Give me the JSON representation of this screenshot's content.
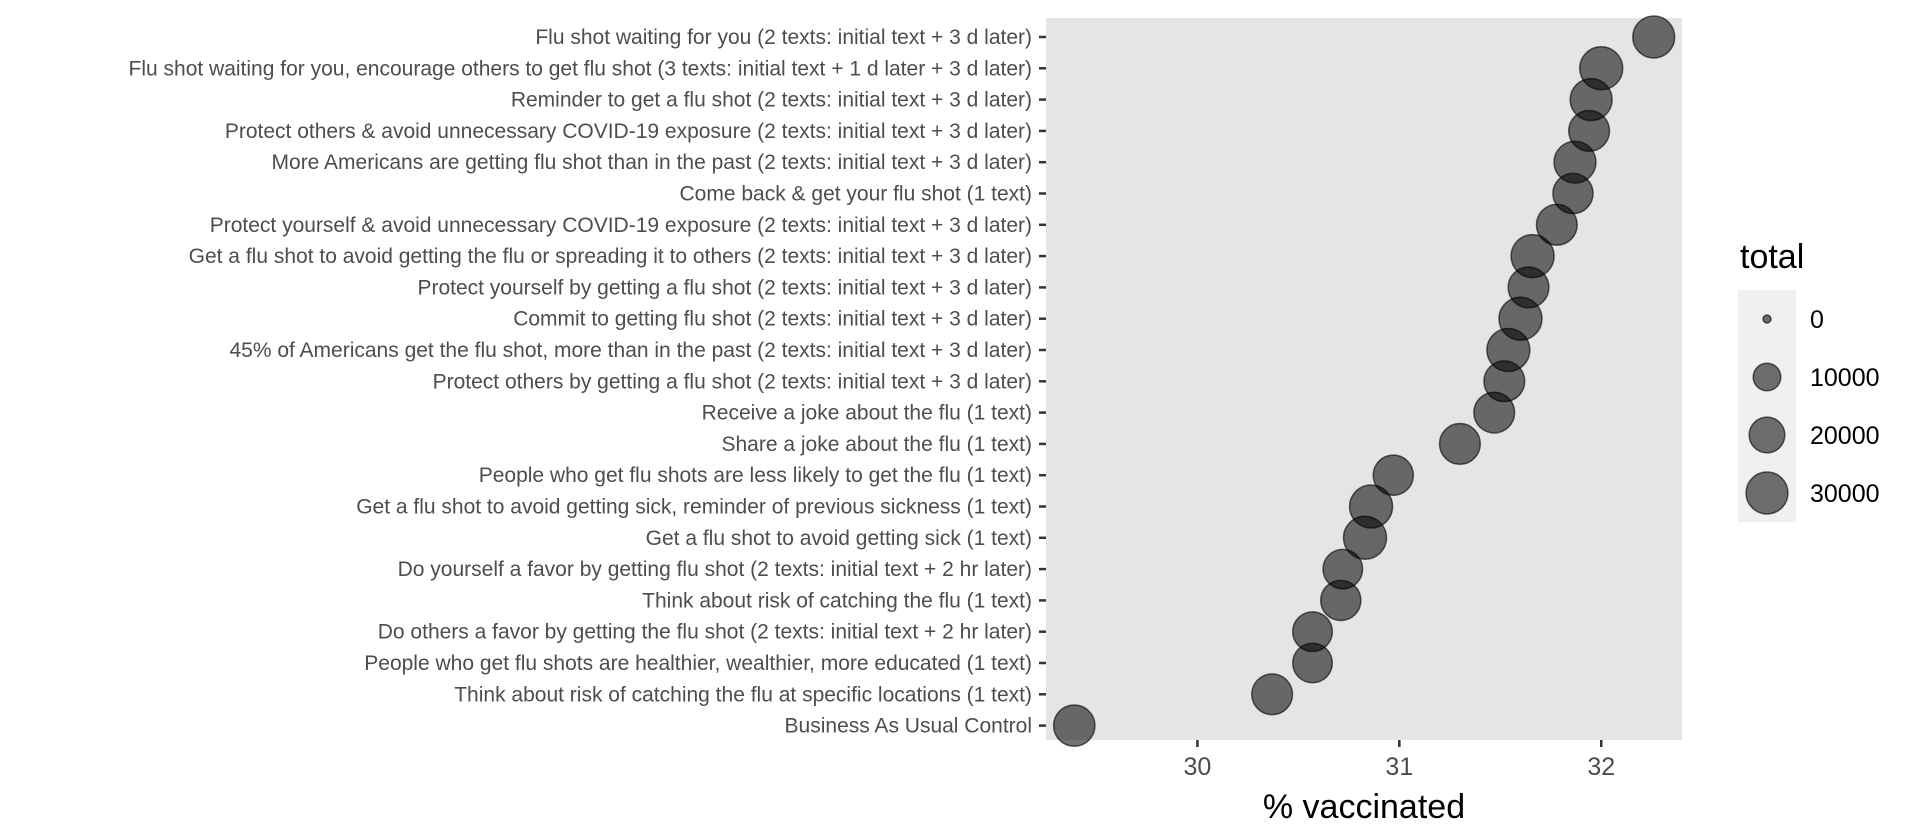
{
  "chart_data": {
    "type": "scatter",
    "title": "",
    "xlabel": "% vaccinated",
    "ylabel": "",
    "xlim": [
      29.25,
      32.4
    ],
    "xticks": [
      30,
      31,
      32
    ],
    "grid": false,
    "panel_background": "#e5e5e5",
    "point_color": "#000000",
    "point_opacity": 0.55,
    "legend_position": "right",
    "legend": {
      "title": "total",
      "breaks": [
        0,
        10000,
        20000,
        30000
      ]
    },
    "points": [
      {
        "label": "Flu shot waiting for you (2 texts: initial text + 3 d later)",
        "x": 32.26,
        "total": 30000
      },
      {
        "label": "Flu shot waiting for you, encourage others to get flu shot (3 texts: initial text + 1 d later + 3 d later)",
        "x": 32.0,
        "total": 32000
      },
      {
        "label": "Reminder to get a flu shot (2 texts: initial text + 3 d later)",
        "x": 31.95,
        "total": 30000
      },
      {
        "label": "Protect others & avoid unnecessary COVID-19 exposure (2 texts: initial text + 3 d later)",
        "x": 31.94,
        "total": 28000
      },
      {
        "label": "More Americans are getting flu shot than in the past (2 texts: initial text + 3 d later)",
        "x": 31.87,
        "total": 30000
      },
      {
        "label": "Come back & get your flu shot (1 text)",
        "x": 31.86,
        "total": 27000
      },
      {
        "label": "Protect yourself & avoid unnecessary COVID-19 exposure (2 texts: initial text + 3 d later)",
        "x": 31.78,
        "total": 28000
      },
      {
        "label": "Get a flu shot to avoid getting the flu or spreading it to others (2 texts: initial text + 3 d later)",
        "x": 31.66,
        "total": 32000
      },
      {
        "label": "Protect yourself by getting a flu shot (2 texts: initial text + 3 d later)",
        "x": 31.64,
        "total": 28000
      },
      {
        "label": "Commit to getting flu shot (2 texts: initial text + 3 d later)",
        "x": 31.6,
        "total": 32000
      },
      {
        "label": "45% of Americans get the flu shot, more than in the past (2 texts: initial text + 3 d later)",
        "x": 31.54,
        "total": 32000
      },
      {
        "label": "Protect others by getting a flu shot (2 texts: initial text + 3 d later)",
        "x": 31.52,
        "total": 28000
      },
      {
        "label": "Receive a joke about the flu (1 text)",
        "x": 31.47,
        "total": 28000
      },
      {
        "label": "Share a joke about the flu (1 text)",
        "x": 31.3,
        "total": 28000
      },
      {
        "label": "People who get flu shots are less likely to get the flu (1 text)",
        "x": 30.97,
        "total": 27000
      },
      {
        "label": "Get a flu shot to avoid getting sick, reminder of previous sickness (1 text)",
        "x": 30.86,
        "total": 32000
      },
      {
        "label": "Get a flu shot to avoid getting sick (1 text)",
        "x": 30.83,
        "total": 32000
      },
      {
        "label": "Do yourself a favor by getting flu shot (2 texts: initial text + 2 hr later)",
        "x": 30.72,
        "total": 26000
      },
      {
        "label": "Think about risk of catching the flu (1 text)",
        "x": 30.71,
        "total": 27000
      },
      {
        "label": "Do others a favor by getting the flu shot (2 texts: initial text + 2 hr later)",
        "x": 30.57,
        "total": 26000
      },
      {
        "label": "People who get flu shots are healthier, wealthier, more educated (1 text)",
        "x": 30.57,
        "total": 26000
      },
      {
        "label": "Think about risk of catching the flu at specific locations (1 text)",
        "x": 30.37,
        "total": 28000
      },
      {
        "label": "Business As Usual Control",
        "x": 29.39,
        "total": 29000
      }
    ]
  }
}
